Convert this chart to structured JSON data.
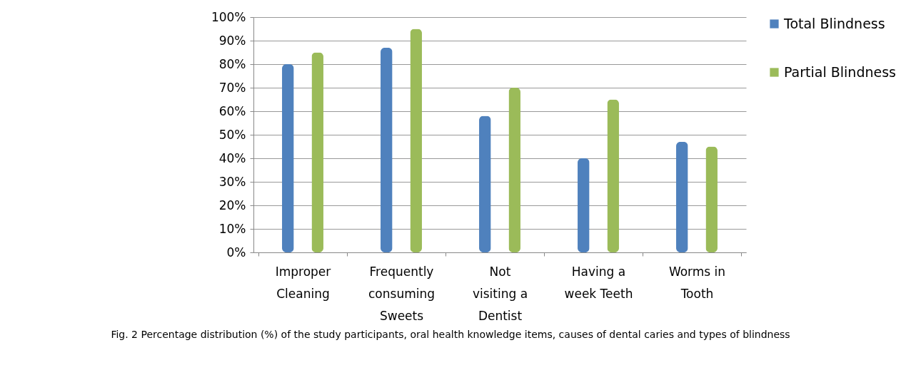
{
  "chart_data": {
    "type": "bar",
    "categories": [
      "Improper Cleaning",
      "Frequently consuming Sweets",
      "Not visiting a Dentist",
      "Having a week Teeth",
      "Worms in Tooth"
    ],
    "series": [
      {
        "name": "Total Blindness",
        "color": "#4f81bd",
        "values": [
          80,
          87,
          58,
          40,
          47
        ]
      },
      {
        "name": "Partial Blindness",
        "color": "#9bbb59",
        "values": [
          85,
          95,
          70,
          65,
          45
        ]
      }
    ],
    "ylim": [
      0,
      100
    ],
    "yticks": [
      {
        "value": 0,
        "label": "0%"
      },
      {
        "value": 10,
        "label": "10%"
      },
      {
        "value": 20,
        "label": "20%"
      },
      {
        "value": 30,
        "label": "30%"
      },
      {
        "value": 40,
        "label": "40%"
      },
      {
        "value": 50,
        "label": "50%"
      },
      {
        "value": 60,
        "label": "60%"
      },
      {
        "value": 70,
        "label": "70%"
      },
      {
        "value": 80,
        "label": "80%"
      },
      {
        "value": 90,
        "label": "90%"
      },
      {
        "value": 100,
        "label": "100%"
      }
    ],
    "grid": "y",
    "legend": "right",
    "annotations": [
      "Fig. 2  Percentage distribution (%) of the study participants, oral health knowledge items, causes of dental caries and types of blindness"
    ]
  }
}
